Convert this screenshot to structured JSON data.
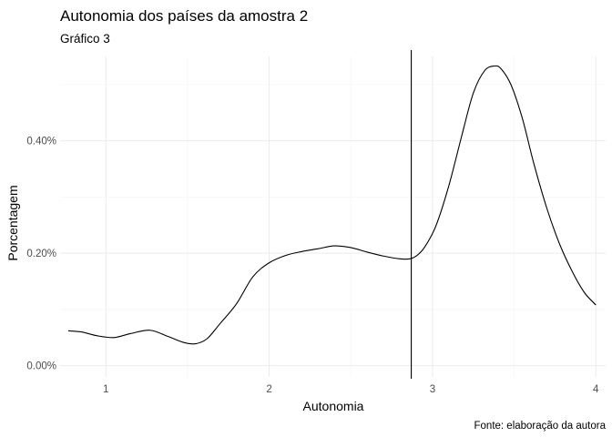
{
  "chart_data": {
    "type": "line",
    "title": "Autonomia dos países da amostra 2",
    "subtitle": "Gráfico 3",
    "xlabel": "Autonomia",
    "ylabel": "Porcentagem",
    "caption": "Fonte: elaboração da autora",
    "xlim": [
      0.72,
      4.06
    ],
    "ylim": [
      -0.0002,
      0.0055
    ],
    "x_ticks": [
      1,
      2,
      3,
      4
    ],
    "x_tick_labels": [
      "1",
      "2",
      "3",
      "4"
    ],
    "y_ticks": [
      0,
      0.002,
      0.004
    ],
    "y_tick_labels": [
      "0.00%",
      "0.20%",
      "0.40%"
    ],
    "grid": true,
    "legend": "none",
    "vline": {
      "x": 2.87
    },
    "series": [
      {
        "x": [
          0.77,
          0.85,
          0.95,
          1.05,
          1.15,
          1.27,
          1.38,
          1.48,
          1.55,
          1.62,
          1.7,
          1.8,
          1.9,
          2.0,
          2.1,
          2.2,
          2.3,
          2.4,
          2.5,
          2.6,
          2.7,
          2.8,
          2.86,
          2.9,
          2.95,
          3.02,
          3.1,
          3.18,
          3.25,
          3.32,
          3.38,
          3.42,
          3.48,
          3.55,
          3.62,
          3.7,
          3.78,
          3.86,
          3.93,
          4.0
        ],
        "y": [
          0.00062,
          0.0006,
          0.00053,
          0.0005,
          0.00057,
          0.00063,
          0.00052,
          0.00041,
          0.00039,
          0.00048,
          0.00075,
          0.0011,
          0.00158,
          0.00183,
          0.00196,
          0.00203,
          0.00208,
          0.00213,
          0.0021,
          0.00202,
          0.00195,
          0.0019,
          0.0019,
          0.00195,
          0.0021,
          0.00248,
          0.0032,
          0.0041,
          0.00485,
          0.00525,
          0.00533,
          0.00528,
          0.005,
          0.0044,
          0.0036,
          0.0028,
          0.00215,
          0.00165,
          0.0013,
          0.00108
        ]
      }
    ]
  }
}
